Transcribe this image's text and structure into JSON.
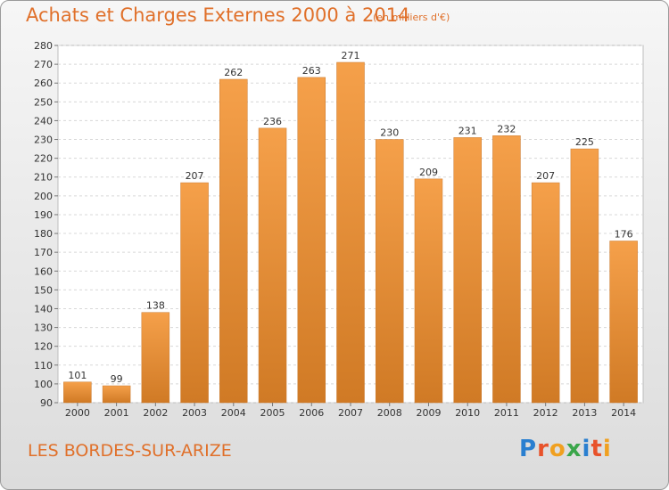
{
  "title": "Achats et Charges Externes 2000 à 2014",
  "subtitle": "(en milliers d'€)",
  "commune": "LES BORDES-SUR-ARIZE",
  "logo": {
    "text": "Proxiti",
    "letters": [
      {
        "ch": "P",
        "color": "#2a7fd0"
      },
      {
        "ch": "r",
        "color": "#e8522a"
      },
      {
        "ch": "o",
        "color": "#f0a020"
      },
      {
        "ch": "x",
        "color": "#3aa64a"
      },
      {
        "ch": "i",
        "color": "#2a7fd0"
      },
      {
        "ch": "t",
        "color": "#e8522a"
      },
      {
        "ch": "i",
        "color": "#f0a020"
      }
    ]
  },
  "colors": {
    "bar": "#f5a04a",
    "bar_dark": "#d07a25",
    "text": "#333333",
    "grid": "#d8d8d8",
    "accent": "#e0702a"
  },
  "chart_data": {
    "type": "bar",
    "categories": [
      "2000",
      "2001",
      "2002",
      "2003",
      "2004",
      "2005",
      "2006",
      "2007",
      "2008",
      "2009",
      "2010",
      "2011",
      "2012",
      "2013",
      "2014"
    ],
    "values": [
      101,
      99,
      138,
      207,
      262,
      236,
      263,
      271,
      230,
      209,
      231,
      232,
      207,
      225,
      176
    ],
    "ylim": [
      90,
      280
    ],
    "yticks": [
      90,
      100,
      110,
      120,
      130,
      140,
      150,
      160,
      170,
      180,
      190,
      200,
      210,
      220,
      230,
      240,
      250,
      260,
      270,
      280
    ],
    "grid": true,
    "xlabel": "",
    "ylabel": ""
  }
}
